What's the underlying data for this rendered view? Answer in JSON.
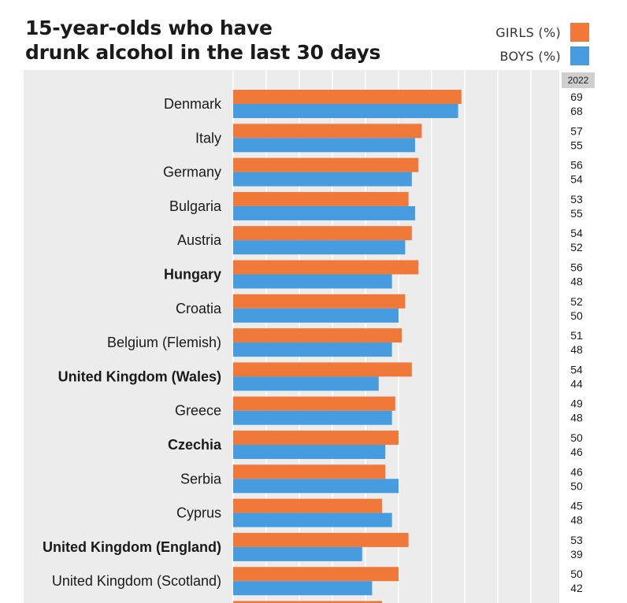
{
  "title_lines": [
    "15-year-olds who have",
    "drunk alcohol in the last 30 days"
  ],
  "chart_data": {
    "type": "bar",
    "orientation": "horizontal",
    "title": "15-year-olds who have drunk alcohol in the last 30 days",
    "value_column_header": "2022",
    "legend_position": "top-right",
    "grid": true,
    "xlim": [
      0,
      100
    ],
    "categories": [
      "Denmark",
      "Italy",
      "Germany",
      "Bulgaria",
      "Austria",
      "Hungary",
      "Croatia",
      "Belgium (Flemish)",
      "United Kingdom (Wales)",
      "Greece",
      "Czechia",
      "Serbia",
      "Cyprus",
      "United Kingdom (England)",
      "United Kingdom (Scotland)"
    ],
    "bold_categories": [
      "Hungary",
      "United Kingdom (Wales)",
      "Czechia",
      "United Kingdom (England)"
    ],
    "series": [
      {
        "name": "GIRLS (%)",
        "color": "#f07838",
        "values": [
          69,
          57,
          56,
          53,
          54,
          56,
          52,
          51,
          54,
          49,
          50,
          46,
          45,
          53,
          50
        ]
      },
      {
        "name": "BOYS (%)",
        "color": "#479bdf",
        "values": [
          68,
          55,
          54,
          55,
          52,
          48,
          50,
          48,
          44,
          48,
          46,
          50,
          48,
          39,
          42
        ]
      }
    ]
  }
}
